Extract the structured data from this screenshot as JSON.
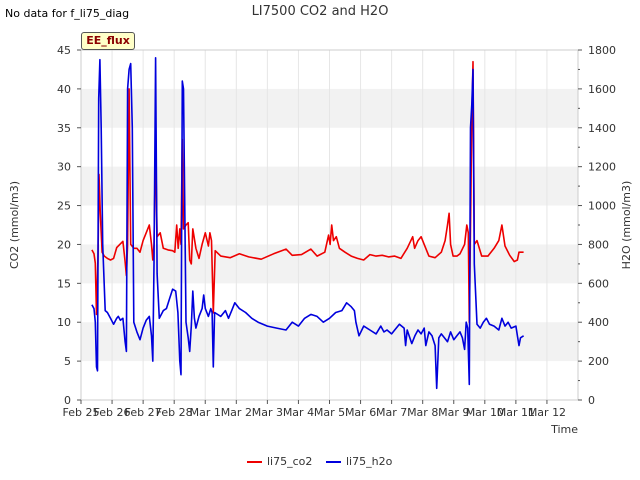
{
  "no_data_note": "No data for f_li75_diag",
  "tag_label": "EE_flux",
  "colors": {
    "co2": "#ee0000",
    "h2o": "#0000dd",
    "band": "#f2f2f2"
  },
  "chart_data": {
    "type": "line",
    "title": "LI7500 CO2 and H2O",
    "xlabel": "Time",
    "ylabel": "CO2 (mmol/m3)",
    "y2label": "H2O (mmol/m3)",
    "x_range": [
      0,
      16
    ],
    "x_ticks": [
      {
        "x": 0,
        "label": "Feb 25"
      },
      {
        "x": 1,
        "label": "Feb 26"
      },
      {
        "x": 2,
        "label": "Feb 27"
      },
      {
        "x": 3,
        "label": "Feb 28"
      },
      {
        "x": 4,
        "label": "Mar 1"
      },
      {
        "x": 5,
        "label": "Mar 2"
      },
      {
        "x": 6,
        "label": "Mar 3"
      },
      {
        "x": 7,
        "label": "Mar 4"
      },
      {
        "x": 8,
        "label": "Mar 5"
      },
      {
        "x": 9,
        "label": "Mar 6"
      },
      {
        "x": 10,
        "label": "Mar 7"
      },
      {
        "x": 11,
        "label": "Mar 8"
      },
      {
        "x": 12,
        "label": "Mar 9"
      },
      {
        "x": 13,
        "label": "Mar 10"
      },
      {
        "x": 14,
        "label": "Mar 11"
      },
      {
        "x": 15,
        "label": "Mar 12"
      }
    ],
    "ylim": [
      0,
      45
    ],
    "y_ticks": [
      0,
      5,
      10,
      15,
      20,
      25,
      30,
      35,
      40,
      45
    ],
    "y2lim": [
      0,
      1800
    ],
    "y2_ticks": [
      0,
      200,
      400,
      600,
      800,
      1000,
      1200,
      1400,
      1600,
      1800
    ],
    "legend": [
      "li75_co2",
      "li75_h2o"
    ],
    "series": [
      {
        "name": "li75_co2",
        "axis": "left",
        "points": [
          [
            0.35,
            19.3
          ],
          [
            0.42,
            18.8
          ],
          [
            0.46,
            17.6
          ],
          [
            0.5,
            11
          ],
          [
            0.55,
            19
          ],
          [
            0.58,
            29
          ],
          [
            0.62,
            24
          ],
          [
            0.68,
            19
          ],
          [
            0.75,
            18.5
          ],
          [
            0.85,
            18.2
          ],
          [
            0.95,
            18
          ],
          [
            1.05,
            18.2
          ],
          [
            1.15,
            19.6
          ],
          [
            1.25,
            20
          ],
          [
            1.35,
            20.4
          ],
          [
            1.42,
            17.8
          ],
          [
            1.46,
            16
          ],
          [
            1.5,
            20
          ],
          [
            1.55,
            40
          ],
          [
            1.6,
            20
          ],
          [
            1.7,
            19.5
          ],
          [
            1.8,
            19.5
          ],
          [
            1.9,
            19
          ],
          [
            2.0,
            20.5
          ],
          [
            2.1,
            21.5
          ],
          [
            2.2,
            22.5
          ],
          [
            2.27,
            20
          ],
          [
            2.31,
            18
          ],
          [
            2.35,
            20
          ],
          [
            2.4,
            33
          ],
          [
            2.45,
            21
          ],
          [
            2.55,
            21.5
          ],
          [
            2.65,
            19.5
          ],
          [
            2.8,
            19.3
          ],
          [
            2.95,
            19.2
          ],
          [
            3.02,
            19
          ],
          [
            3.08,
            22.5
          ],
          [
            3.13,
            19.5
          ],
          [
            3.18,
            22
          ],
          [
            3.22,
            20
          ],
          [
            3.26,
            33.5
          ],
          [
            3.3,
            22
          ],
          [
            3.38,
            22.5
          ],
          [
            3.45,
            22.8
          ],
          [
            3.5,
            18
          ],
          [
            3.55,
            17.5
          ],
          [
            3.6,
            22
          ],
          [
            3.7,
            19.5
          ],
          [
            3.8,
            18.2
          ],
          [
            3.9,
            20
          ],
          [
            4.0,
            21.5
          ],
          [
            4.1,
            19.8
          ],
          [
            4.15,
            21.5
          ],
          [
            4.2,
            20.5
          ],
          [
            4.26,
            11.2
          ],
          [
            4.32,
            19.2
          ],
          [
            4.5,
            18.5
          ],
          [
            4.8,
            18.3
          ],
          [
            5.1,
            18.8
          ],
          [
            5.4,
            18.4
          ],
          [
            5.8,
            18.1
          ],
          [
            6.2,
            18.8
          ],
          [
            6.6,
            19.4
          ],
          [
            6.8,
            18.6
          ],
          [
            7.1,
            18.7
          ],
          [
            7.4,
            19.4
          ],
          [
            7.6,
            18.5
          ],
          [
            7.85,
            19
          ],
          [
            7.97,
            21.2
          ],
          [
            8.02,
            20
          ],
          [
            8.07,
            22.5
          ],
          [
            8.13,
            20.5
          ],
          [
            8.22,
            21
          ],
          [
            8.32,
            19.5
          ],
          [
            8.5,
            19
          ],
          [
            8.7,
            18.5
          ],
          [
            8.9,
            18.2
          ],
          [
            9.1,
            18
          ],
          [
            9.3,
            18.7
          ],
          [
            9.5,
            18.5
          ],
          [
            9.7,
            18.6
          ],
          [
            9.9,
            18.4
          ],
          [
            10.1,
            18.5
          ],
          [
            10.3,
            18.2
          ],
          [
            10.5,
            19.5
          ],
          [
            10.68,
            21
          ],
          [
            10.74,
            19.5
          ],
          [
            10.85,
            20.5
          ],
          [
            10.95,
            21
          ],
          [
            11.05,
            20
          ],
          [
            11.2,
            18.5
          ],
          [
            11.4,
            18.3
          ],
          [
            11.6,
            19
          ],
          [
            11.72,
            20.5
          ],
          [
            11.8,
            22.5
          ],
          [
            11.85,
            24
          ],
          [
            11.9,
            20
          ],
          [
            11.98,
            18.5
          ],
          [
            12.1,
            18.5
          ],
          [
            12.2,
            18.8
          ],
          [
            12.35,
            20
          ],
          [
            12.42,
            22.5
          ],
          [
            12.47,
            21.5
          ],
          [
            12.5,
            10
          ],
          [
            12.54,
            22
          ],
          [
            12.58,
            36
          ],
          [
            12.62,
            43.5
          ],
          [
            12.66,
            20
          ],
          [
            12.75,
            20.5
          ],
          [
            12.9,
            18.5
          ],
          [
            13.1,
            18.5
          ],
          [
            13.3,
            19.5
          ],
          [
            13.45,
            20.5
          ],
          [
            13.55,
            22.5
          ],
          [
            13.65,
            19.8
          ],
          [
            13.8,
            18.6
          ],
          [
            13.95,
            17.8
          ],
          [
            14.05,
            18
          ],
          [
            14.1,
            19
          ],
          [
            14.25,
            19
          ]
        ]
      },
      {
        "name": "li75_h2o",
        "axis": "right",
        "points": [
          [
            0.35,
            490
          ],
          [
            0.42,
            470
          ],
          [
            0.46,
            400
          ],
          [
            0.5,
            170
          ],
          [
            0.53,
            150
          ],
          [
            0.57,
            1550
          ],
          [
            0.61,
            1750
          ],
          [
            0.65,
            1400
          ],
          [
            0.7,
            800
          ],
          [
            0.78,
            460
          ],
          [
            0.85,
            450
          ],
          [
            0.95,
            420
          ],
          [
            1.05,
            390
          ],
          [
            1.15,
            420
          ],
          [
            1.2,
            430
          ],
          [
            1.27,
            410
          ],
          [
            1.35,
            420
          ],
          [
            1.42,
            300
          ],
          [
            1.46,
            250
          ],
          [
            1.5,
            1600
          ],
          [
            1.55,
            1700
          ],
          [
            1.6,
            1730
          ],
          [
            1.65,
            1400
          ],
          [
            1.7,
            400
          ],
          [
            1.8,
            350
          ],
          [
            1.9,
            310
          ],
          [
            2.0,
            370
          ],
          [
            2.1,
            410
          ],
          [
            2.2,
            430
          ],
          [
            2.27,
            330
          ],
          [
            2.31,
            200
          ],
          [
            2.35,
            700
          ],
          [
            2.4,
            1760
          ],
          [
            2.45,
            650
          ],
          [
            2.52,
            420
          ],
          [
            2.65,
            460
          ],
          [
            2.75,
            470
          ],
          [
            2.85,
            520
          ],
          [
            2.95,
            570
          ],
          [
            3.05,
            560
          ],
          [
            3.12,
            450
          ],
          [
            3.18,
            200
          ],
          [
            3.22,
            130
          ],
          [
            3.26,
            1640
          ],
          [
            3.3,
            1600
          ],
          [
            3.38,
            400
          ],
          [
            3.45,
            320
          ],
          [
            3.5,
            250
          ],
          [
            3.55,
            380
          ],
          [
            3.6,
            560
          ],
          [
            3.65,
            420
          ],
          [
            3.7,
            370
          ],
          [
            3.8,
            430
          ],
          [
            3.9,
            470
          ],
          [
            3.95,
            540
          ],
          [
            4.0,
            470
          ],
          [
            4.1,
            430
          ],
          [
            4.18,
            470
          ],
          [
            4.22,
            450
          ],
          [
            4.26,
            170
          ],
          [
            4.3,
            450
          ],
          [
            4.5,
            430
          ],
          [
            4.65,
            460
          ],
          [
            4.75,
            420
          ],
          [
            4.85,
            460
          ],
          [
            4.95,
            500
          ],
          [
            5.1,
            470
          ],
          [
            5.3,
            450
          ],
          [
            5.5,
            420
          ],
          [
            5.7,
            400
          ],
          [
            6.0,
            380
          ],
          [
            6.3,
            370
          ],
          [
            6.6,
            360
          ],
          [
            6.8,
            400
          ],
          [
            7.0,
            380
          ],
          [
            7.2,
            420
          ],
          [
            7.4,
            440
          ],
          [
            7.6,
            430
          ],
          [
            7.8,
            400
          ],
          [
            8.0,
            420
          ],
          [
            8.2,
            450
          ],
          [
            8.4,
            460
          ],
          [
            8.55,
            500
          ],
          [
            8.7,
            480
          ],
          [
            8.8,
            460
          ],
          [
            8.85,
            400
          ],
          [
            8.95,
            330
          ],
          [
            9.1,
            380
          ],
          [
            9.3,
            360
          ],
          [
            9.5,
            340
          ],
          [
            9.65,
            380
          ],
          [
            9.75,
            350
          ],
          [
            9.85,
            360
          ],
          [
            10.0,
            340
          ],
          [
            10.1,
            360
          ],
          [
            10.25,
            390
          ],
          [
            10.4,
            370
          ],
          [
            10.45,
            280
          ],
          [
            10.5,
            360
          ],
          [
            10.65,
            290
          ],
          [
            10.75,
            330
          ],
          [
            10.85,
            360
          ],
          [
            10.95,
            340
          ],
          [
            11.05,
            370
          ],
          [
            11.1,
            280
          ],
          [
            11.2,
            350
          ],
          [
            11.3,
            330
          ],
          [
            11.4,
            280
          ],
          [
            11.45,
            60
          ],
          [
            11.52,
            320
          ],
          [
            11.6,
            340
          ],
          [
            11.7,
            320
          ],
          [
            11.8,
            300
          ],
          [
            11.9,
            350
          ],
          [
            12.0,
            310
          ],
          [
            12.1,
            330
          ],
          [
            12.2,
            350
          ],
          [
            12.28,
            320
          ],
          [
            12.35,
            260
          ],
          [
            12.4,
            400
          ],
          [
            12.45,
            370
          ],
          [
            12.5,
            80
          ],
          [
            12.54,
            1400
          ],
          [
            12.58,
            1520
          ],
          [
            12.62,
            1700
          ],
          [
            12.66,
            700
          ],
          [
            12.75,
            390
          ],
          [
            12.85,
            370
          ],
          [
            12.95,
            400
          ],
          [
            13.05,
            420
          ],
          [
            13.15,
            390
          ],
          [
            13.3,
            380
          ],
          [
            13.45,
            360
          ],
          [
            13.55,
            420
          ],
          [
            13.65,
            380
          ],
          [
            13.75,
            400
          ],
          [
            13.85,
            370
          ],
          [
            14.0,
            380
          ],
          [
            14.05,
            330
          ],
          [
            14.1,
            280
          ],
          [
            14.15,
            320
          ],
          [
            14.25,
            330
          ]
        ]
      }
    ]
  }
}
